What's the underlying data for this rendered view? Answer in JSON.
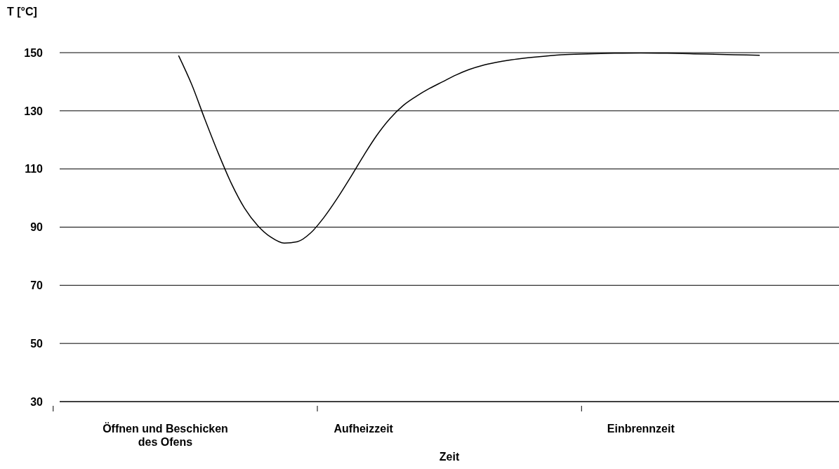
{
  "chart_data": {
    "type": "line",
    "xlabel": "Zeit",
    "ylabel": "T [°C]",
    "categories": [
      null,
      null,
      null,
      null,
      null,
      null,
      null,
      null,
      "Öffnen und Beschicken des Ofens",
      null,
      null,
      null,
      null,
      null,
      null,
      null,
      null,
      null,
      null,
      null,
      null,
      null,
      null,
      "Aufheizzeit",
      null,
      null,
      null,
      null,
      null,
      null,
      null,
      null,
      null,
      null,
      null,
      null,
      null,
      null,
      null,
      null,
      null,
      null,
      null,
      null,
      "Einbrennzeit",
      null,
      null,
      null,
      null,
      null,
      null,
      null,
      null,
      null,
      null,
      null,
      null,
      null,
      null,
      null
    ],
    "series": [
      {
        "color": "#000000",
        "values": [
          null,
          null,
          null,
          null,
          null,
          null,
          null,
          null,
          null,
          149,
          139,
          127,
          115.5,
          105,
          96.5,
          90.5,
          86.5,
          84.5,
          85,
          88,
          93.3,
          99.8,
          107,
          114.5,
          121.5,
          127.3,
          131.8,
          135,
          137.7,
          140,
          142.3,
          144.2,
          145.6,
          146.6,
          147.4,
          148,
          148.5,
          null,
          149.3,
          null,
          149.6,
          null,
          149.8,
          null,
          149.9,
          null,
          149.8,
          null,
          149.6,
          null,
          149.4,
          null,
          149.2,
          149.1,
          null,
          null,
          null,
          null,
          null,
          null
        ]
      }
    ],
    "ylim": [
      30,
      150
    ],
    "yticks": [
      30,
      50,
      70,
      90,
      110,
      130,
      150
    ],
    "grid": "y",
    "marker": "none",
    "line_style": "solid"
  }
}
